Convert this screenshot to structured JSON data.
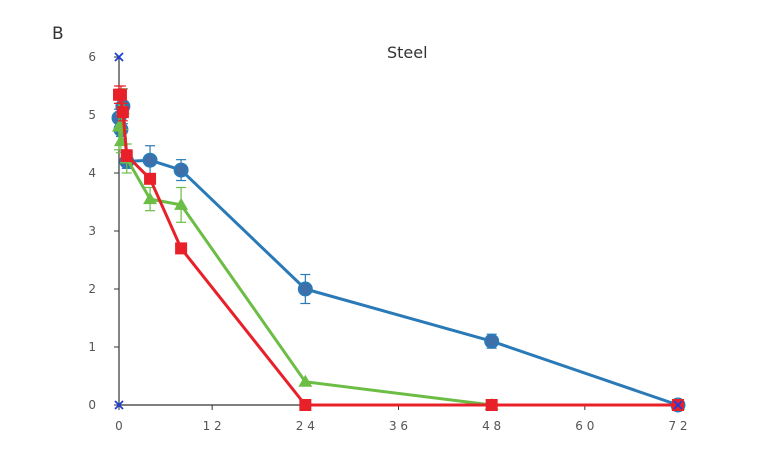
{
  "panel_letter": "B",
  "chart_data": {
    "type": "line",
    "title": "Steel",
    "xlabel": "",
    "ylabel": "",
    "xlim": [
      0,
      72
    ],
    "ylim": [
      0,
      6
    ],
    "x_ticks": [
      0,
      12,
      24,
      36,
      48,
      60,
      72
    ],
    "x_tick_labels": [
      "0",
      "1 2",
      "2 4",
      "3 6",
      "4 8",
      "6 0",
      "7 2"
    ],
    "y_ticks": [
      0,
      1,
      2,
      3,
      4,
      5,
      6
    ],
    "y_tick_labels": [
      "0",
      "1",
      "2",
      "3",
      "4",
      "5",
      "6"
    ],
    "grid": false,
    "legend": "none",
    "series": [
      {
        "color": "#2a7ab8",
        "marker": "circle",
        "x": [
          0,
          0.25,
          0.5,
          1,
          4,
          8,
          24,
          48,
          72
        ],
        "y": [
          4.95,
          4.75,
          5.15,
          4.2,
          4.22,
          4.05,
          2.0,
          1.1,
          0
        ],
        "err": [
          0.15,
          0.12,
          0.3,
          0.12,
          0.25,
          0.18,
          0.25,
          0.12,
          0
        ]
      },
      {
        "color": "#6cbd45",
        "marker": "triangle",
        "x": [
          0,
          0.25,
          0.5,
          1,
          4,
          8,
          24,
          48,
          72
        ],
        "y": [
          4.8,
          4.55,
          5.1,
          4.25,
          3.55,
          3.45,
          0.4,
          0,
          0
        ],
        "err": [
          0.4,
          0.2,
          0.35,
          0.25,
          0.2,
          0.3,
          0,
          0,
          0
        ]
      },
      {
        "color": "#e8202a",
        "marker": "square",
        "x": [
          0,
          0.25,
          0.5,
          1,
          4,
          8,
          24,
          48,
          72
        ],
        "y": [
          5.35,
          5.35,
          5.05,
          4.3,
          3.9,
          2.7,
          0,
          0,
          0
        ],
        "err": [
          0.15,
          0.15,
          0.15,
          0.1,
          0,
          0,
          0,
          0,
          0
        ]
      }
    ],
    "cross_markers": [
      {
        "x": 0,
        "y": 6
      },
      {
        "x": 0,
        "y": 0
      },
      {
        "x": 72,
        "y": 0
      }
    ],
    "cross_color": "#1f3fd6"
  }
}
